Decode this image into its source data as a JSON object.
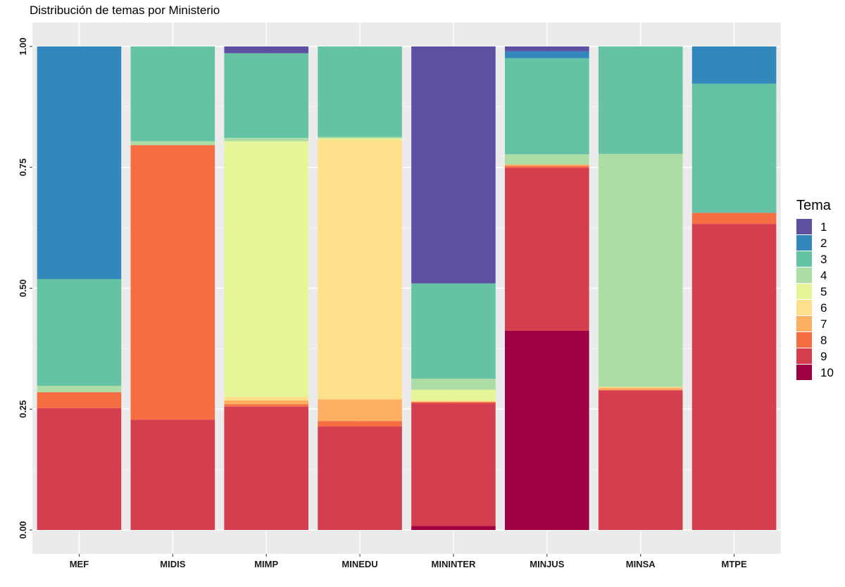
{
  "chart_data": {
    "type": "bar",
    "stacked": true,
    "title": "Distribución de temas por Ministerio",
    "xlabel": "",
    "ylabel": "",
    "ylim": [
      0,
      1
    ],
    "yticks": [
      "0.00",
      "0.25",
      "0.50",
      "0.75",
      "1.00"
    ],
    "categories": [
      "MEF",
      "MIDIS",
      "MIMP",
      "MINEDU",
      "MININTER",
      "MINJUS",
      "MINSA",
      "MTPE"
    ],
    "legend": {
      "title": "Tema",
      "position": "right"
    },
    "grid": true,
    "series": [
      {
        "name": "10",
        "color": "#9E0142",
        "values": [
          0,
          0,
          0,
          0,
          0.008,
          0.412,
          0,
          0
        ]
      },
      {
        "name": "9",
        "color": "#D53E4F",
        "values": [
          0.252,
          0.228,
          0.255,
          0.214,
          0.254,
          0.337,
          0.289,
          0.633
        ]
      },
      {
        "name": "8",
        "color": "#F46D43",
        "values": [
          0.033,
          0.568,
          0.005,
          0.011,
          0.003,
          0.004,
          0,
          0.023
        ]
      },
      {
        "name": "7",
        "color": "#FDAE61",
        "values": [
          0,
          0,
          0.008,
          0.045,
          0,
          0.003,
          0.005,
          0
        ]
      },
      {
        "name": "6",
        "color": "#FEE08B",
        "values": [
          0,
          0,
          0.007,
          0.537,
          0.003,
          0,
          0.002,
          0
        ]
      },
      {
        "name": "5",
        "color": "#E6F598",
        "values": [
          0,
          0,
          0.529,
          0.003,
          0.022,
          0,
          0,
          0
        ]
      },
      {
        "name": "4",
        "color": "#ABDDA4",
        "values": [
          0.013,
          0.008,
          0.007,
          0.003,
          0.023,
          0.021,
          0.482,
          0
        ]
      },
      {
        "name": "3",
        "color": "#66C2A5",
        "values": [
          0.221,
          0.196,
          0.175,
          0.187,
          0.197,
          0.199,
          0.222,
          0.267
        ]
      },
      {
        "name": "2",
        "color": "#3288BD",
        "values": [
          0.481,
          0,
          0,
          0,
          0,
          0.014,
          0,
          0.077
        ]
      },
      {
        "name": "1",
        "color": "#5E4FA2",
        "values": [
          0,
          0,
          0.014,
          0,
          0.49,
          0.01,
          0,
          0
        ]
      }
    ],
    "legend_order": [
      "1",
      "2",
      "3",
      "4",
      "5",
      "6",
      "7",
      "8",
      "9",
      "10"
    ]
  },
  "colors": {
    "panel_background": "#EBEBEB",
    "grid_major": "#FFFFFF",
    "grid_minor": "#F5F5F5"
  }
}
